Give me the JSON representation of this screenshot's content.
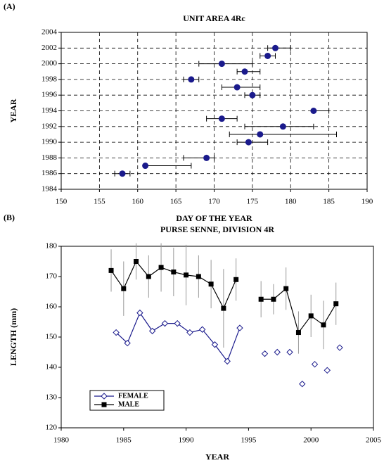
{
  "chart_data": [
    {
      "type": "scatter",
      "panel": "(A)",
      "title": "UNIT AREA 4Rc",
      "x_label": "DAY OF THE YEAR",
      "y_label": "YEAR",
      "x": [
        158,
        161,
        169,
        174.5,
        176,
        179,
        171,
        183,
        175,
        173,
        167,
        174,
        171,
        177,
        178
      ],
      "values": [
        1986,
        1987,
        1988,
        1990,
        1991,
        1992,
        1993,
        1994,
        1996,
        1997,
        1998,
        1999,
        2000,
        2001,
        2002
      ],
      "x_low": [
        157,
        161,
        166,
        173,
        172,
        174,
        169,
        183,
        174,
        171,
        166,
        173,
        168,
        176,
        177
      ],
      "x_high": [
        159,
        167,
        170,
        177,
        186,
        183,
        173,
        185,
        176,
        176,
        168,
        176,
        175,
        178,
        180
      ],
      "color": "#1a1a8c",
      "xlim": [
        150,
        190
      ],
      "xticks": [
        150,
        155,
        160,
        165,
        170,
        175,
        180,
        185,
        190
      ],
      "ylim": [
        1984,
        2004
      ],
      "yticks": [
        1984,
        1986,
        1988,
        1990,
        1992,
        1994,
        1996,
        1998,
        2000,
        2002,
        2004
      ],
      "grid": true
    },
    {
      "type": "line",
      "panel": "(B)",
      "title": "PURSE SENNE,  DIVISION 4R",
      "x_label": "YEAR",
      "y_label": "LENGTH (mm)",
      "series": [
        {
          "name": "FEMALE",
          "color": "#1a1a8c",
          "marker": "diamond",
          "x": [
            1984.4,
            1985.3,
            1986.3,
            1987.3,
            1988.3,
            1989.3,
            1990.3,
            1991.3,
            1992.3,
            1993.3,
            1994.3,
            1995.3,
            1996.3,
            1996.8,
            1997.3,
            1997.8,
            1998.3,
            1998.8,
            1999.3,
            1999.8,
            2000.3,
            2000.8,
            2001.3,
            2001.8,
            2002.3
          ],
          "values": [
            151.5,
            148,
            158,
            152,
            154.5,
            154.5,
            151.5,
            152.5,
            147.5,
            142,
            153,
            null,
            144.5,
            null,
            145,
            null,
            145,
            null,
            134.5,
            null,
            141,
            null,
            139,
            null,
            146.5
          ]
        },
        {
          "name": "MALE",
          "color": "#000000",
          "marker": "square",
          "x": [
            1984,
            1985,
            1986,
            1987,
            1988,
            1989,
            1990,
            1991,
            1992,
            1993,
            1994,
            1995,
            1996,
            1997,
            1998,
            1999,
            2000,
            2001,
            2002
          ],
          "values": [
            172,
            166,
            175,
            170,
            173,
            171.5,
            170.5,
            170,
            167.5,
            159.5,
            169,
            null,
            162.5,
            162.5,
            166,
            151.5,
            157,
            154,
            161
          ],
          "errors": [
            7,
            9,
            6,
            7,
            8,
            8,
            10,
            7,
            8,
            13,
            7,
            null,
            6,
            5,
            7,
            7,
            7,
            8,
            7
          ]
        }
      ],
      "xlim": [
        1980,
        2005
      ],
      "xticks": [
        1980,
        1985,
        1990,
        1995,
        2000,
        2005
      ],
      "ylim": [
        120,
        180
      ],
      "yticks": [
        120,
        130,
        140,
        150,
        160,
        170,
        180
      ],
      "grid": false,
      "legend": "lower left"
    }
  ]
}
